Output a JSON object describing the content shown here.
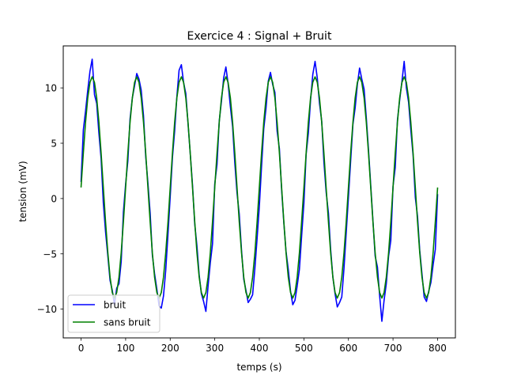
{
  "chart_data": {
    "type": "line",
    "title": "Exercice 4 : Signal + Bruit",
    "xlabel": "temps (s)",
    "ylabel": "tension (mV)",
    "xlim": [
      -40,
      840
    ],
    "ylim": [
      -12.6,
      13.8
    ],
    "xticks": [
      0,
      100,
      200,
      300,
      400,
      500,
      600,
      700,
      800
    ],
    "xtick_labels": [
      "0",
      "100",
      "200",
      "300",
      "400",
      "500",
      "600",
      "700",
      "800"
    ],
    "yticks": [
      -10,
      -5,
      0,
      5,
      10
    ],
    "ytick_labels": [
      "−10",
      "−5",
      "0",
      "5",
      "10"
    ],
    "grid": false,
    "legend_position": "lower left",
    "series": [
      {
        "name": "bruit",
        "color": "#0000ff",
        "x": [
          0,
          5,
          10,
          15,
          20,
          25,
          30,
          35,
          40,
          45,
          50,
          55,
          60,
          65,
          70,
          75,
          80,
          85,
          90,
          95,
          100,
          105,
          110,
          115,
          120,
          125,
          130,
          135,
          140,
          145,
          150,
          155,
          160,
          165,
          170,
          175,
          180,
          185,
          190,
          195,
          200,
          205,
          210,
          215,
          220,
          225,
          230,
          235,
          240,
          245,
          250,
          255,
          260,
          265,
          270,
          275,
          280,
          285,
          290,
          295,
          300,
          305,
          310,
          315,
          320,
          325,
          330,
          335,
          340,
          345,
          350,
          355,
          360,
          365,
          370,
          375,
          380,
          385,
          390,
          395,
          400,
          405,
          410,
          415,
          420,
          425,
          430,
          435,
          440,
          445,
          450,
          455,
          460,
          465,
          470,
          475,
          480,
          485,
          490,
          495,
          500,
          505,
          510,
          515,
          520,
          525,
          530,
          535,
          540,
          545,
          550,
          555,
          560,
          565,
          570,
          575,
          580,
          585,
          590,
          595,
          600,
          605,
          610,
          615,
          620,
          625,
          630,
          635,
          640,
          645,
          650,
          655,
          660,
          665,
          670,
          675,
          680,
          685,
          690,
          695,
          700,
          705,
          710,
          715,
          720,
          725,
          730,
          735,
          740,
          745,
          750,
          755,
          760,
          765,
          770,
          775,
          780,
          785,
          790,
          795,
          800
        ],
        "y": [
          1.5,
          6.2,
          7.9,
          9.8,
          11.5,
          12.6,
          9.4,
          8.6,
          5.9,
          3.6,
          -0.4,
          -3.0,
          -5.2,
          -7.4,
          -8.3,
          -9.6,
          -8.1,
          -7.7,
          -5.7,
          -1.2,
          1.3,
          3.4,
          7.2,
          9.1,
          10.2,
          11.3,
          10.8,
          9.8,
          7.5,
          3.8,
          1.4,
          -1.3,
          -5.1,
          -6.8,
          -8.2,
          -9.7,
          -9.9,
          -8.8,
          -6.5,
          -3.2,
          0.2,
          3.7,
          6.1,
          9.2,
          11.6,
          12.1,
          10.5,
          9.5,
          6.8,
          4.1,
          1.2,
          -2.3,
          -4.3,
          -6.9,
          -8.6,
          -9.3,
          -10.2,
          -7.9,
          -5.8,
          -4.1,
          1.3,
          3.1,
          7.0,
          8.8,
          10.9,
          11.9,
          10.4,
          8.3,
          6.5,
          3.2,
          0.5,
          -1.4,
          -4.7,
          -7.3,
          -8.3,
          -9.4,
          -9.1,
          -8.7,
          -6.3,
          -3.6,
          -0.7,
          2.9,
          6.3,
          8.2,
          10.6,
          11.4,
          10.3,
          9.6,
          6.1,
          4.5,
          0.8,
          -2.2,
          -4.8,
          -6.4,
          -8.4,
          -9.6,
          -9.2,
          -7.9,
          -6.4,
          -3.4,
          -0.4,
          4.0,
          5.9,
          8.9,
          11.2,
          12.4,
          10.9,
          8.6,
          7.0,
          3.3,
          0.6,
          -1.3,
          -4.6,
          -7.1,
          -8.6,
          -9.8,
          -9.4,
          -8.9,
          -6.3,
          -3.1,
          0.1,
          3.4,
          6.7,
          8.2,
          10.3,
          11.8,
          10.8,
          9.9,
          7.3,
          4.4,
          1.2,
          -2.0,
          -5.2,
          -6.2,
          -8.8,
          -11.1,
          -9.2,
          -7.7,
          -5.2,
          -3.8,
          1.1,
          2.8,
          7.1,
          8.9,
          10.6,
          12.4,
          10.0,
          8.7,
          6.2,
          3.9,
          0.1,
          -1.6,
          -4.7,
          -6.8,
          -8.9,
          -9.3,
          -8.4,
          -7.6,
          -6.0,
          -4.6,
          0.4
        ]
      },
      {
        "name": "sans bruit",
        "color": "#008000",
        "x": [
          0,
          5,
          10,
          15,
          20,
          25,
          30,
          35,
          40,
          45,
          50,
          55,
          60,
          65,
          70,
          75,
          80,
          85,
          90,
          95,
          100,
          105,
          110,
          115,
          120,
          125,
          130,
          135,
          140,
          145,
          150,
          155,
          160,
          165,
          170,
          175,
          180,
          185,
          190,
          195,
          200,
          205,
          210,
          215,
          220,
          225,
          230,
          235,
          240,
          245,
          250,
          255,
          260,
          265,
          270,
          275,
          280,
          285,
          290,
          295,
          300,
          305,
          310,
          315,
          320,
          325,
          330,
          335,
          340,
          345,
          350,
          355,
          360,
          365,
          370,
          375,
          380,
          385,
          390,
          395,
          400,
          405,
          410,
          415,
          420,
          425,
          430,
          435,
          440,
          445,
          450,
          455,
          460,
          465,
          470,
          475,
          480,
          485,
          490,
          495,
          500,
          505,
          510,
          515,
          520,
          525,
          530,
          535,
          540,
          545,
          550,
          555,
          560,
          565,
          570,
          575,
          580,
          585,
          590,
          595,
          600,
          605,
          610,
          615,
          620,
          625,
          630,
          635,
          640,
          645,
          650,
          655,
          660,
          665,
          670,
          675,
          680,
          685,
          690,
          695,
          700,
          705,
          710,
          715,
          720,
          725,
          730,
          735,
          740,
          745,
          750,
          755,
          760,
          765,
          770,
          775,
          780,
          785,
          790,
          795,
          800
        ],
        "y": [
          1.0,
          4.1,
          6.9,
          9.1,
          10.5,
          11.0,
          10.5,
          9.1,
          6.9,
          4.1,
          1.0,
          -2.1,
          -4.9,
          -7.1,
          -8.5,
          -9.0,
          -8.5,
          -7.1,
          -4.9,
          -2.1,
          1.0,
          4.1,
          6.9,
          9.1,
          10.5,
          11.0,
          10.5,
          9.1,
          6.9,
          4.1,
          1.0,
          -2.1,
          -4.9,
          -7.1,
          -8.5,
          -9.0,
          -8.5,
          -7.1,
          -4.9,
          -2.1,
          1.0,
          4.1,
          6.9,
          9.1,
          10.5,
          11.0,
          10.5,
          9.1,
          6.9,
          4.1,
          1.0,
          -2.1,
          -4.9,
          -7.1,
          -8.5,
          -9.0,
          -8.5,
          -7.1,
          -4.9,
          -2.1,
          1.0,
          4.1,
          6.9,
          9.1,
          10.5,
          11.0,
          10.5,
          9.1,
          6.9,
          4.1,
          1.0,
          -2.1,
          -4.9,
          -7.1,
          -8.5,
          -9.0,
          -8.5,
          -7.1,
          -4.9,
          -2.1,
          1.0,
          4.1,
          6.9,
          9.1,
          10.5,
          11.0,
          10.5,
          9.1,
          6.9,
          4.1,
          1.0,
          -2.1,
          -4.9,
          -7.1,
          -8.5,
          -9.0,
          -8.5,
          -7.1,
          -4.9,
          -2.1,
          1.0,
          4.1,
          6.9,
          9.1,
          10.5,
          11.0,
          10.5,
          9.1,
          6.9,
          4.1,
          1.0,
          -2.1,
          -4.9,
          -7.1,
          -8.5,
          -9.0,
          -8.5,
          -7.1,
          -4.9,
          -2.1,
          1.0,
          4.1,
          6.9,
          9.1,
          10.5,
          11.0,
          10.5,
          9.1,
          6.9,
          4.1,
          1.0,
          -2.1,
          -4.9,
          -7.1,
          -8.5,
          -9.0,
          -8.5,
          -7.1,
          -4.9,
          -2.1,
          1.0,
          4.1,
          6.9,
          9.1,
          10.5,
          11.0,
          10.5,
          9.1,
          6.9,
          4.1,
          1.0,
          -2.1,
          -4.9,
          -7.1,
          -8.5,
          -9.0,
          -8.5,
          -7.1,
          -4.9,
          -2.1,
          1.0
        ]
      }
    ]
  }
}
